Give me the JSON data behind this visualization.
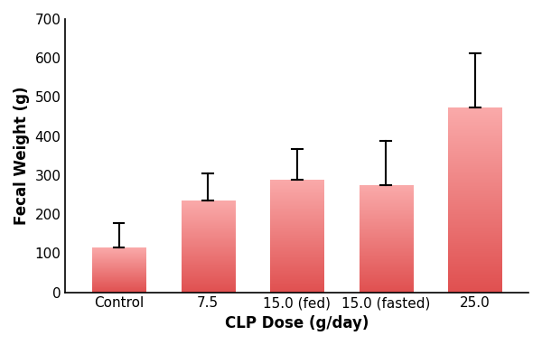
{
  "categories": [
    "Control",
    "7.5",
    "15.0 (fed)",
    "15.0 (fasted)",
    "25.0"
  ],
  "values": [
    115,
    235,
    288,
    275,
    473
  ],
  "errors_up": [
    62,
    70,
    80,
    112,
    140
  ],
  "bar_color_top": "#F5A0A0",
  "bar_color_bottom": "#E05050",
  "bar_edge_color": "none",
  "error_color": "black",
  "xlabel": "CLP Dose (g/day)",
  "ylabel": "Fecal Weight (g)",
  "ylim": [
    0,
    700
  ],
  "yticks": [
    0,
    100,
    200,
    300,
    400,
    500,
    600,
    700
  ],
  "background_color": "#ffffff",
  "bar_width": 0.6,
  "capsize": 4,
  "xlabel_fontsize": 12,
  "ylabel_fontsize": 12,
  "tick_fontsize": 11
}
